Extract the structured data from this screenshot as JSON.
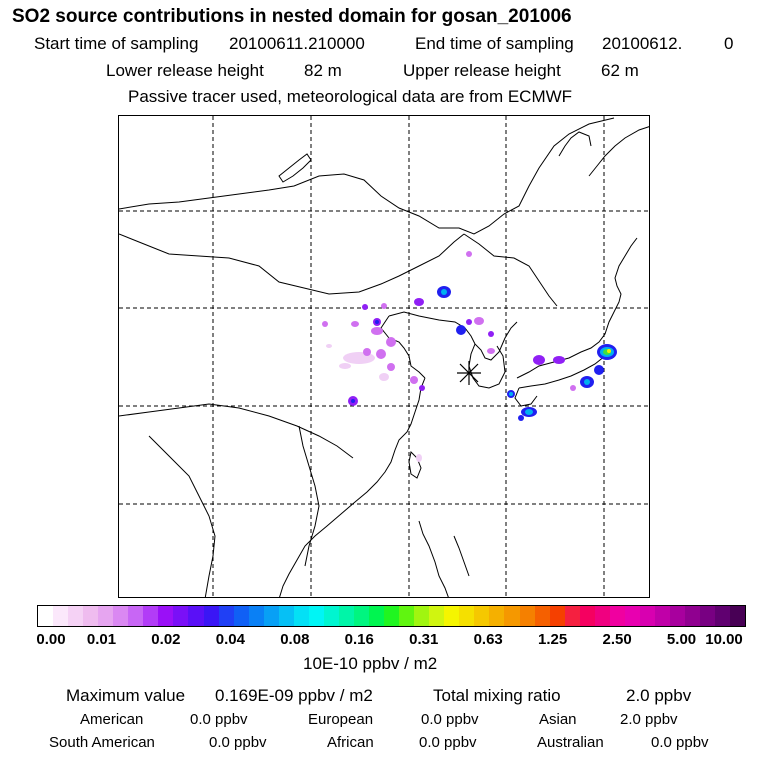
{
  "header": {
    "title": "SO2 source contributions in nested domain for gosan_201006",
    "start_label": "Start time of sampling",
    "start_value": "20100611.210000",
    "end_label": "End time of sampling",
    "end_value": "20100612.",
    "end_suffix": "0",
    "lower_label": "Lower release height",
    "lower_value": "82 m",
    "upper_label": "Upper release height",
    "upper_value": "62 m",
    "note": "Passive tracer used, meteorological data are from ECMWF"
  },
  "colorbar": {
    "ticks": [
      "0.00",
      "0.01",
      "0.02",
      "0.04",
      "0.08",
      "0.16",
      "0.31",
      "0.63",
      "1.25",
      "2.50",
      "5.00",
      "10.00"
    ],
    "unit": "10E-10 ppbv / m2",
    "colors": [
      "#ffffff",
      "#fbe8fb",
      "#f5d2f5",
      "#efbcef",
      "#e6a5f0",
      "#da88f2",
      "#c866f5",
      "#b23cf7",
      "#9a10f7",
      "#7a10f7",
      "#5a10f7",
      "#3a16f5",
      "#2040f5",
      "#1060f5",
      "#0a80f5",
      "#08a0f5",
      "#06c0f5",
      "#04e0f5",
      "#00f5f5",
      "#00f5d0",
      "#00f5a8",
      "#00f580",
      "#00f550",
      "#20f520",
      "#60f510",
      "#a0f510",
      "#d0f510",
      "#f5f500",
      "#f5e000",
      "#f5c800",
      "#f5b000",
      "#f59800",
      "#f58000",
      "#f56000",
      "#f54000",
      "#f52040",
      "#f50060",
      "#f00080",
      "#f000a0",
      "#e800b0",
      "#d800b0",
      "#c000a8",
      "#a8009e",
      "#900090",
      "#780082",
      "#600070",
      "#480055"
    ]
  },
  "statistics": {
    "max_label": "Maximum value",
    "max_value": "0.169E-09 ppbv / m2",
    "total_label": "Total mixing ratio",
    "total_value": "2.0 ppbv",
    "regions": [
      {
        "name": "American",
        "value": "0.0 ppbv"
      },
      {
        "name": "European",
        "value": "0.0 ppbv"
      },
      {
        "name": "Asian",
        "value": "2.0 ppbv"
      },
      {
        "name": "South American",
        "value": "0.0 ppbv"
      },
      {
        "name": "African",
        "value": "0.0 ppbv"
      },
      {
        "name": "Australian",
        "value": "0.0 ppbv"
      }
    ]
  },
  "map": {
    "receptor_marker": "asterisk",
    "plume_colors": {
      "low": "#f0d0f5",
      "mid": "#d070f0",
      "high": "#9020f5",
      "blue": "#2020f0",
      "cyan": "#00b0f0",
      "green": "#40e040",
      "yellow": "#f0f000"
    }
  }
}
